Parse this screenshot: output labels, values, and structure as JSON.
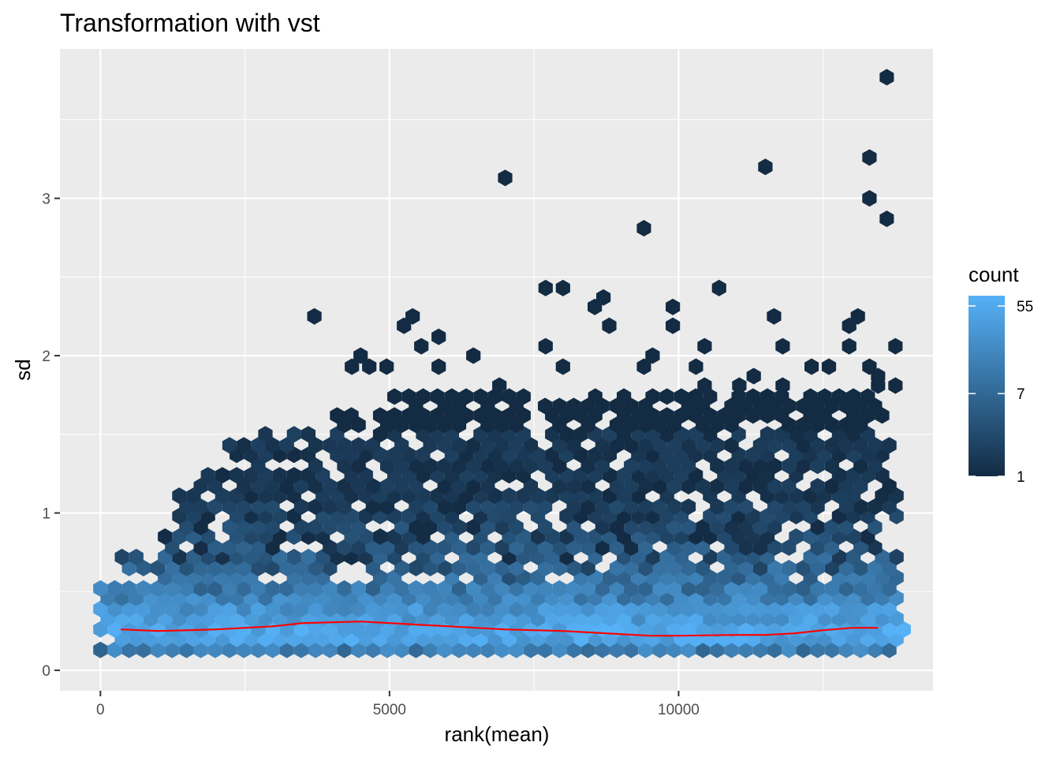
{
  "chart_data": {
    "type": "hexbin",
    "title": "Transformation with vst",
    "xlabel": "rank(mean)",
    "ylabel": "sd",
    "xlim": [
      -700,
      14400
    ],
    "ylim": [
      -0.13,
      3.95
    ],
    "x_ticks": [
      0,
      5000,
      10000
    ],
    "y_ticks": [
      0,
      1,
      2,
      3
    ],
    "grid": true,
    "legend": {
      "title": "count",
      "labels": [
        1,
        7,
        55
      ],
      "scale": "log",
      "color_low": "#132B43",
      "color_high": "#56B1F7",
      "max_count": 70,
      "position": "right"
    },
    "trend_line": {
      "color": "#ff0000",
      "x": [
        350,
        1000,
        2000,
        3000,
        3500,
        4500,
        5000,
        6000,
        7000,
        8000,
        9000,
        9500,
        10000,
        11000,
        11500,
        12000,
        12500,
        13000,
        13450
      ],
      "y": [
        0.26,
        0.25,
        0.26,
        0.28,
        0.3,
        0.31,
        0.3,
        0.28,
        0.26,
        0.25,
        0.23,
        0.22,
        0.22,
        0.225,
        0.225,
        0.235,
        0.255,
        0.27,
        0.27
      ]
    },
    "outliers": [
      [
        13600,
        3.77
      ],
      [
        13300,
        3.26
      ],
      [
        11500,
        3.2
      ],
      [
        7000,
        3.13
      ],
      [
        13300,
        3.0
      ],
      [
        13600,
        2.87
      ],
      [
        9400,
        2.81
      ],
      [
        7700,
        2.43
      ],
      [
        8000,
        2.43
      ],
      [
        10700,
        2.43
      ],
      [
        8700,
        2.37
      ],
      [
        8550,
        2.31
      ],
      [
        9900,
        2.31
      ],
      [
        3700,
        2.25
      ],
      [
        5400,
        2.25
      ],
      [
        11650,
        2.25
      ],
      [
        13100,
        2.25
      ],
      [
        5250,
        2.19
      ],
      [
        8800,
        2.19
      ],
      [
        9900,
        2.19
      ],
      [
        12950,
        2.19
      ],
      [
        5850,
        2.12
      ],
      [
        7700,
        2.06
      ],
      [
        10450,
        2.06
      ],
      [
        11800,
        2.06
      ],
      [
        12950,
        2.06
      ],
      [
        13750,
        2.06
      ],
      [
        5550,
        2.06
      ],
      [
        4500,
        2.0
      ],
      [
        6450,
        2.0
      ],
      [
        9550,
        2.0
      ],
      [
        8000,
        1.93
      ],
      [
        4350,
        1.93
      ],
      [
        4650,
        1.93
      ],
      [
        4950,
        1.93
      ],
      [
        5850,
        1.93
      ],
      [
        9400,
        1.93
      ],
      [
        10300,
        1.93
      ],
      [
        12300,
        1.93
      ],
      [
        12600,
        1.93
      ],
      [
        13300,
        1.93
      ],
      [
        13450,
        1.87
      ],
      [
        11300,
        1.87
      ],
      [
        6900,
        1.81
      ],
      [
        10450,
        1.81
      ],
      [
        11050,
        1.81
      ],
      [
        11800,
        1.81
      ],
      [
        13450,
        1.81
      ],
      [
        13750,
        1.81
      ]
    ],
    "bands": [
      {
        "sd": 0.13,
        "x_from": 0,
        "x_to": 13850,
        "min_count": 6,
        "max_count": 25
      },
      {
        "sd": 0.2,
        "x_from": 150,
        "x_to": 14000,
        "min_count": 25,
        "max_count": 70
      },
      {
        "sd": 0.26,
        "x_from": 0,
        "x_to": 14000,
        "min_count": 30,
        "max_count": 70
      },
      {
        "sd": 0.33,
        "x_from": 0,
        "x_to": 14000,
        "min_count": 20,
        "max_count": 60
      },
      {
        "sd": 0.39,
        "x_from": 0,
        "x_to": 13850,
        "min_count": 15,
        "max_count": 45
      },
      {
        "sd": 0.46,
        "x_from": 0,
        "x_to": 13850,
        "min_count": 8,
        "max_count": 30
      },
      {
        "sd": 0.52,
        "x_from": 0,
        "x_to": 13850,
        "min_count": 5,
        "max_count": 22
      },
      {
        "sd": 0.59,
        "x_from": 150,
        "x_to": 13850,
        "min_count": 3,
        "max_count": 16
      },
      {
        "sd": 0.65,
        "x_from": 300,
        "x_to": 13850,
        "min_count": 2,
        "max_count": 12
      },
      {
        "sd": 0.72,
        "x_from": 150,
        "x_to": 13850,
        "min_count": 1,
        "max_count": 9
      },
      {
        "sd": 0.78,
        "x_from": 800,
        "x_to": 13850,
        "min_count": 1,
        "max_count": 7
      },
      {
        "sd": 0.85,
        "x_from": 900,
        "x_to": 13850,
        "min_count": 1,
        "max_count": 5
      },
      {
        "sd": 0.91,
        "x_from": 1100,
        "x_to": 13850,
        "min_count": 1,
        "max_count": 4
      },
      {
        "sd": 0.98,
        "x_from": 1200,
        "x_to": 13850,
        "min_count": 1,
        "max_count": 3
      },
      {
        "sd": 1.04,
        "x_from": 1400,
        "x_to": 13850,
        "min_count": 1,
        "max_count": 3
      },
      {
        "sd": 1.11,
        "x_from": 1300,
        "x_to": 13850,
        "min_count": 1,
        "max_count": 2
      },
      {
        "sd": 1.17,
        "x_from": 1500,
        "x_to": 13700,
        "min_count": 1,
        "max_count": 2
      },
      {
        "sd": 1.24,
        "x_from": 1800,
        "x_to": 13600,
        "min_count": 1,
        "max_count": 2
      },
      {
        "sd": 1.3,
        "x_from": 2500,
        "x_to": 13600,
        "min_count": 1,
        "max_count": 2
      },
      {
        "sd": 1.37,
        "x_from": 2200,
        "x_to": 13700,
        "min_count": 1,
        "max_count": 2
      },
      {
        "sd": 1.43,
        "x_from": 2100,
        "x_to": 13700,
        "min_count": 1,
        "max_count": 2
      },
      {
        "sd": 1.5,
        "x_from": 2800,
        "x_to": 13450,
        "min_count": 1,
        "max_count": 2
      },
      {
        "sd": 1.56,
        "x_from": 3800,
        "x_to": 13300,
        "min_count": 1,
        "max_count": 1
      },
      {
        "sd": 1.62,
        "x_from": 4000,
        "x_to": 13750,
        "min_count": 1,
        "max_count": 1
      },
      {
        "sd": 1.68,
        "x_from": 5100,
        "x_to": 13450,
        "min_count": 1,
        "max_count": 1
      },
      {
        "sd": 1.74,
        "x_from": 5000,
        "x_to": 13300,
        "min_count": 1,
        "max_count": 1
      }
    ]
  }
}
